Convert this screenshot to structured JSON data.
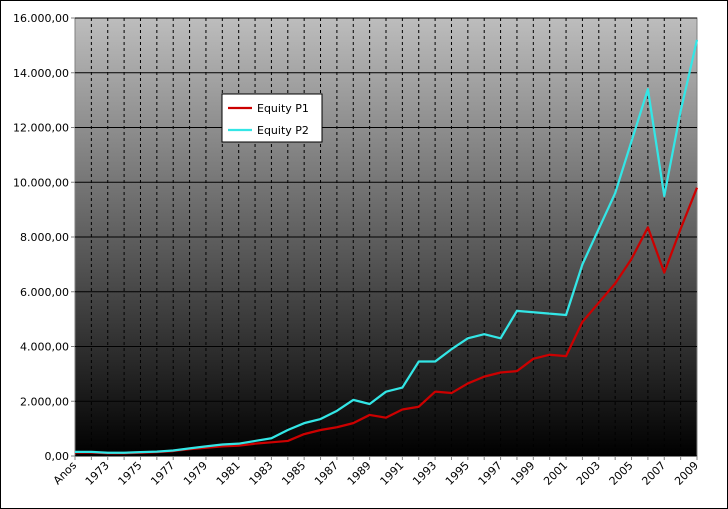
{
  "chart_data": {
    "type": "line",
    "categories": [
      "Anos",
      null,
      "1973",
      null,
      "1975",
      null,
      "1977",
      null,
      "1979",
      null,
      "1981",
      null,
      "1983",
      null,
      "1985",
      null,
      "1987",
      null,
      "1989",
      null,
      "1991",
      null,
      "1993",
      null,
      "1995",
      null,
      "1997",
      null,
      "1999",
      null,
      "2001",
      null,
      "2003",
      null,
      "2005",
      null,
      "2007",
      null,
      "2009"
    ],
    "series": [
      {
        "name": "Equity P1",
        "color": "#cc0000",
        "values": [
          130,
          130,
          100,
          100,
          120,
          140,
          180,
          250,
          300,
          350,
          380,
          450,
          500,
          550,
          800,
          950,
          1050,
          1200,
          1500,
          1400,
          1700,
          1800,
          2350,
          2300,
          2650,
          2900,
          3050,
          3100,
          3550,
          3700,
          3650,
          4900,
          5600,
          6300,
          7200,
          8350,
          6700,
          8300,
          9800
        ]
      },
      {
        "name": "Equity P2",
        "color": "#33e6e6",
        "values": [
          150,
          150,
          120,
          120,
          140,
          160,
          200,
          280,
          350,
          420,
          450,
          550,
          650,
          950,
          1200,
          1350,
          1650,
          2050,
          1900,
          2350,
          2500,
          3450,
          3450,
          3900,
          4300,
          4450,
          4300,
          5300,
          5250,
          5200,
          5150,
          7000,
          8300,
          9600,
          11500,
          13400,
          9500,
          12600,
          15200
        ]
      }
    ],
    "ylim": [
      0,
      16000
    ],
    "yticks": [
      {
        "value": 0,
        "label": "0,00"
      },
      {
        "value": 2000,
        "label": "2.000,00"
      },
      {
        "value": 4000,
        "label": "4.000,00"
      },
      {
        "value": 6000,
        "label": "6.000,00"
      },
      {
        "value": 8000,
        "label": "8.000,00"
      },
      {
        "value": 10000,
        "label": "10.000,00"
      },
      {
        "value": 12000,
        "label": "12.000,00"
      },
      {
        "value": 14000,
        "label": "14.000,00"
      },
      {
        "value": 16000,
        "label": "16.000,00"
      }
    ],
    "grid": true
  }
}
